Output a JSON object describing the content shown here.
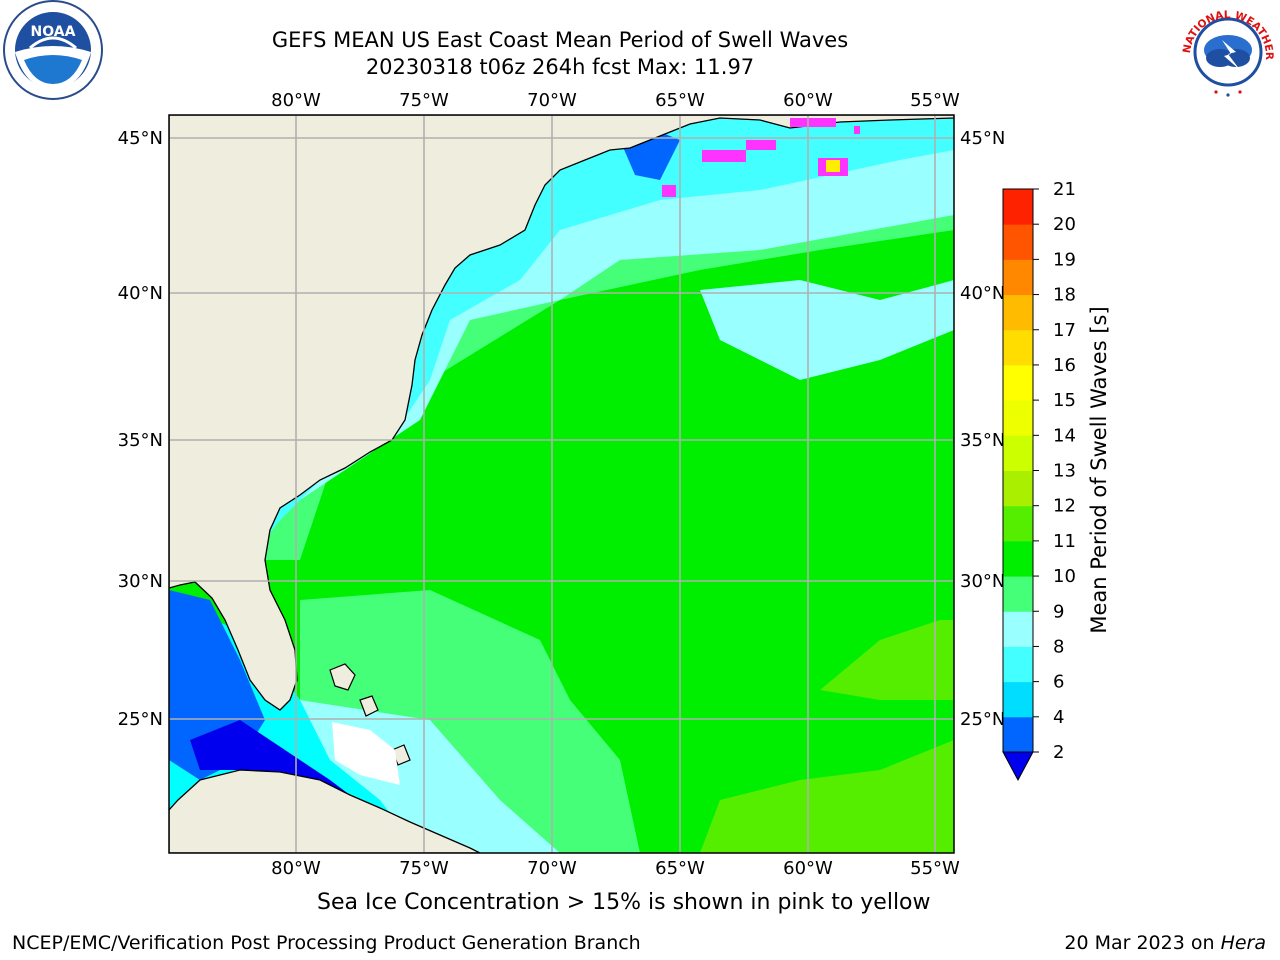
{
  "header": {
    "title_line1": "GEFS MEAN US East Coast Mean Period of Swell Waves",
    "title_line2": "20230318 t06z 264h fcst   Max: 11.97"
  },
  "logos": {
    "noara_name": "noaa-logo",
    "noaa_text": "NOAA",
    "nws_text": "NATIONAL WEATHER SERVICE"
  },
  "map": {
    "lon_labels": [
      "80°W",
      "75°W",
      "70°W",
      "65°W",
      "60°W",
      "55°W"
    ],
    "lat_labels": [
      "45°N",
      "40°N",
      "35°N",
      "30°N",
      "25°N"
    ],
    "colors": {
      "land": "#efedde",
      "grid": "#b0b0b0",
      "ice_pink": "#ff33ff",
      "ice_yellow": "#ffee00"
    }
  },
  "colorbar": {
    "label": "Mean Period of Swell Waves [s]",
    "ticks": [
      "2",
      "4",
      "6",
      "8",
      "9",
      "10",
      "11",
      "12",
      "13",
      "14",
      "15",
      "16",
      "17",
      "18",
      "19",
      "20",
      "21"
    ],
    "colors": [
      "#0066ff",
      "#00ddff",
      "#44ffff",
      "#99ffff",
      "#44ff77",
      "#00ee00",
      "#55ee00",
      "#aaee00",
      "#ccff00",
      "#eeff00",
      "#ffff00",
      "#ffdd00",
      "#ffbb00",
      "#ff8800",
      "#ff5500",
      "#ff2200"
    ],
    "under_color": "#0000ee"
  },
  "footer": {
    "note": "Sea Ice Concentration > 15% is shown in pink to yellow",
    "credit_left": "NCEP/EMC/Verification Post Processing Product Generation Branch",
    "date_text": "20 Mar 2023 on ",
    "machine": "Hera"
  }
}
